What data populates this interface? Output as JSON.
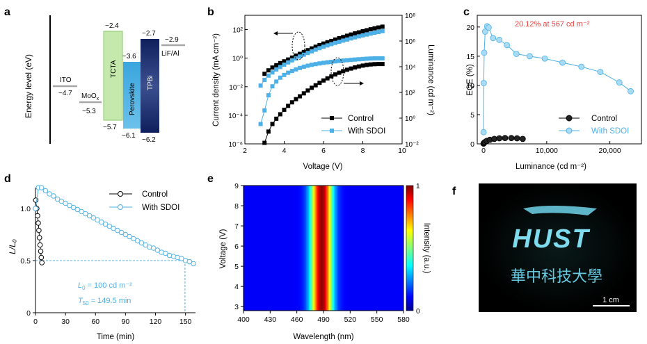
{
  "panels": {
    "a": {
      "letter": "a",
      "ylabel": "Energy level (eV)",
      "layers": [
        {
          "name": "ITO",
          "top": -4.7,
          "color": "#a6a6a6",
          "type": "line"
        },
        {
          "name": "MoOx",
          "base": "MoO",
          "sub": "x",
          "top": -5.3,
          "color": "#a6a6a6",
          "type": "line"
        },
        {
          "name": "TCTA",
          "top": -2.4,
          "bottom": -5.7,
          "color": "#b9e3a0",
          "edge": "#8cc76b",
          "type": "box"
        },
        {
          "name": "Perovskite",
          "top": -3.6,
          "bottom": -6.1,
          "color": "#4fb0e0",
          "type": "box"
        },
        {
          "name": "TPBi",
          "top": -2.7,
          "bottom": -6.2,
          "color": "#1f3173",
          "type": "box"
        },
        {
          "name": "LiF/Al",
          "top": -2.9,
          "color": "#a6a6a6",
          "type": "line"
        }
      ],
      "level_labels": [
        "−4.7",
        "−5.3",
        "−2.4",
        "−5.7",
        "−3.6",
        "−6.1",
        "−2.7",
        "−6.2",
        "−2.9"
      ]
    },
    "b": {
      "letter": "b"
    },
    "c": {
      "letter": "c",
      "annotation": "20.12% at 567 cd m⁻²"
    },
    "d": {
      "letter": "d",
      "annotation_l0": "= 100 cd m⁻²",
      "annotation_t50": "= 149.5 min"
    },
    "e": {
      "letter": "e"
    },
    "f": {
      "letter": "f",
      "logo_text": "HUST",
      "chinese_text": "華中科技大學",
      "scale_bar": "1 cm"
    }
  },
  "chart_data": [
    {
      "panel": "b",
      "type": "line",
      "xlabel": "Voltage (V)",
      "ylabel": "Current density (mA cm⁻²)",
      "y2label": "Luminance (cd m⁻²)",
      "xlim": [
        2,
        10
      ],
      "xticks": [
        "2",
        "4",
        "6",
        "8",
        "10"
      ],
      "ylim_log10": [
        -6,
        3
      ],
      "yticks": [
        "10⁻⁶",
        "10⁻⁴",
        "10⁻²",
        "10⁰",
        "10²"
      ],
      "y2lim_log10": [
        -2,
        8
      ],
      "y2ticks": [
        "10⁻²",
        "10⁰",
        "10²",
        "10⁴",
        "10⁶",
        "10⁸"
      ],
      "legend_position": "bottom-right",
      "series": [
        {
          "name": "Control",
          "axis": "left",
          "color": "#000000",
          "x": [
            3.0,
            3.2,
            3.4,
            3.6,
            3.8,
            4.0,
            4.2,
            4.4,
            4.6,
            4.8,
            5.0,
            5.2,
            5.4,
            5.6,
            5.8,
            6.0,
            6.2,
            6.4,
            6.6,
            6.8,
            7.0,
            7.2,
            7.4,
            7.6,
            7.8,
            8.0,
            8.2,
            8.4,
            8.6,
            8.8,
            9.0
          ],
          "y": [
            0.08,
            0.14,
            0.22,
            0.32,
            0.45,
            0.6,
            0.8,
            1.1,
            1.5,
            2,
            2.7,
            3.6,
            4.8,
            6.3,
            8.2,
            10.5,
            13,
            16,
            20,
            25,
            30,
            37,
            45,
            54,
            64,
            76,
            90,
            105,
            122,
            140,
            160
          ]
        },
        {
          "name": "With SDOI",
          "axis": "left",
          "color": "#4db0e6",
          "x": [
            2.8,
            3.0,
            3.2,
            3.4,
            3.6,
            3.8,
            4.0,
            4.2,
            4.4,
            4.6,
            4.8,
            5.0,
            5.2,
            5.4,
            5.6,
            5.8,
            6.0,
            6.2,
            6.4,
            6.6,
            6.8,
            7.0,
            7.2,
            7.4,
            7.6,
            7.8,
            8.0,
            8.2,
            8.4,
            8.6,
            8.8,
            9.0
          ],
          "y": [
            0.012,
            0.03,
            0.06,
            0.1,
            0.16,
            0.24,
            0.35,
            0.5,
            0.7,
            0.95,
            1.3,
            1.75,
            2.3,
            3,
            3.9,
            5,
            6.3,
            7.8,
            9.6,
            11.7,
            14,
            17,
            20,
            24,
            28.5,
            33.5,
            39,
            45,
            52,
            60,
            68,
            78
          ]
        },
        {
          "name": "Control",
          "axis": "right",
          "color": "#000000",
          "x": [
            3.0,
            3.2,
            3.4,
            3.6,
            3.8,
            4.0,
            4.2,
            4.4,
            4.6,
            4.8,
            5.0,
            5.2,
            5.4,
            5.6,
            5.8,
            6.0,
            6.2,
            6.4,
            6.6,
            6.8,
            7.0,
            7.2,
            7.4,
            7.6,
            7.8,
            8.0,
            8.2,
            8.4,
            8.6,
            8.8,
            9.0
          ],
          "y": [
            0.012,
            0.09,
            0.35,
            0.9,
            2,
            4.5,
            9,
            17,
            30,
            50,
            85,
            140,
            230,
            360,
            560,
            850,
            1250,
            1800,
            2500,
            3400,
            4500,
            5800,
            7200,
            8800,
            10500,
            12200,
            13800,
            15000,
            15800,
            16200,
            16200
          ]
        },
        {
          "name": "With SDOI",
          "axis": "right",
          "color": "#4db0e6",
          "x": [
            2.8,
            3.0,
            3.2,
            3.4,
            3.6,
            3.8,
            4.0,
            4.2,
            4.4,
            4.6,
            4.8,
            5.0,
            5.2,
            5.4,
            5.6,
            5.8,
            6.0,
            6.2,
            6.4,
            6.6,
            6.8,
            7.0,
            7.2,
            7.4,
            7.6,
            7.8,
            8.0,
            8.2,
            8.4,
            8.6,
            8.8,
            9.0
          ],
          "y": [
            0.35,
            4,
            60,
            300,
            700,
            1400,
            2300,
            3400,
            4700,
            6200,
            8000,
            10000,
            12000,
            14000,
            16000,
            18000,
            20000,
            22000,
            24000,
            26000,
            28000,
            30000,
            32000,
            34000,
            36000,
            38000,
            40000,
            42000,
            43500,
            44500,
            45000,
            45000
          ]
        }
      ]
    },
    {
      "panel": "c",
      "type": "line",
      "xlabel": "Luminance (cd m⁻²)",
      "ylabel": "EQE (%)",
      "xlim": [
        -1000,
        25000
      ],
      "xticks": [
        "0",
        "10,000",
        "20,000"
      ],
      "ylim": [
        0,
        22
      ],
      "yticks": [
        "0",
        "5",
        "10",
        "15",
        "20"
      ],
      "legend_position": "bottom-right",
      "series": [
        {
          "name": "Control",
          "color": "#000000",
          "x": [
            0,
            60,
            200,
            500,
            1000,
            1700,
            2500,
            3400,
            4400,
            5300,
            6200
          ],
          "y": [
            0.05,
            0.15,
            0.3,
            0.5,
            0.7,
            0.85,
            0.95,
            1.0,
            1.0,
            0.95,
            0.85
          ]
        },
        {
          "name": "With SDOI",
          "color": "#4db0e6",
          "x": [
            0,
            30,
            100,
            250,
            567,
            800,
            1500,
            2500,
            3700,
            5200,
            7300,
            9700,
            12500,
            15500,
            18500,
            21500,
            23300
          ],
          "y": [
            2,
            10.4,
            15.6,
            19.2,
            20.12,
            19.9,
            18.1,
            17.8,
            16.9,
            15.4,
            15,
            14.6,
            13.9,
            13.2,
            12.3,
            10.5,
            9
          ]
        }
      ]
    },
    {
      "panel": "d",
      "type": "line",
      "xlabel": "Time (min)",
      "ylabel": "L/L₀",
      "xlim": [
        0,
        160
      ],
      "xticks": [
        "0",
        "30",
        "60",
        "90",
        "120",
        "150"
      ],
      "ylim": [
        0,
        1.2
      ],
      "yticks": [
        "0",
        "0.5",
        "1.0"
      ],
      "legend_position": "top-right",
      "t50_marker": {
        "x": 149.5,
        "y": 0.5
      },
      "series": [
        {
          "name": "Control",
          "color": "#000000",
          "x": [
            0.3,
            1.3,
            2.1,
            2.8,
            3.4,
            4.0,
            4.6,
            5.2,
            5.8,
            6.4
          ],
          "y": [
            1.08,
            1.0,
            0.93,
            0.86,
            0.79,
            0.72,
            0.65,
            0.59,
            0.53,
            0.48
          ]
        },
        {
          "name": "With SDOI",
          "color": "#4db0e6",
          "x": [
            0,
            3,
            6,
            10,
            14,
            18,
            22,
            26,
            30,
            34,
            38,
            42,
            46,
            50,
            54,
            58,
            62,
            66,
            70,
            74,
            78,
            82,
            86,
            90,
            94,
            98,
            102,
            106,
            110,
            114,
            118,
            122,
            126,
            130,
            134,
            138,
            142,
            146,
            150,
            154,
            158
          ],
          "y": [
            1.0,
            1.2,
            1.2,
            1.17,
            1.14,
            1.12,
            1.09,
            1.07,
            1.05,
            1.03,
            1.01,
            0.99,
            0.97,
            0.95,
            0.93,
            0.91,
            0.89,
            0.87,
            0.85,
            0.83,
            0.81,
            0.79,
            0.77,
            0.75,
            0.73,
            0.71,
            0.69,
            0.67,
            0.65,
            0.63,
            0.62,
            0.6,
            0.58,
            0.57,
            0.55,
            0.54,
            0.53,
            0.52,
            0.5,
            0.49,
            0.47
          ]
        }
      ]
    },
    {
      "panel": "e",
      "type": "heatmap",
      "xlabel": "Wavelength (nm)",
      "ylabel": "Voltage (V)",
      "colorbar_label": "Intensity (a.u.)",
      "colorbar_ticks": [
        "0",
        "1"
      ],
      "xlim": [
        400,
        580
      ],
      "xticks": [
        "400",
        "430",
        "460",
        "490",
        "520",
        "550",
        "580"
      ],
      "ylim": [
        2.8,
        9
      ],
      "yticks": [
        "3",
        "4",
        "5",
        "6",
        "7",
        "8",
        "9"
      ],
      "peak_wavelength": 488,
      "fwhm": 20
    }
  ]
}
